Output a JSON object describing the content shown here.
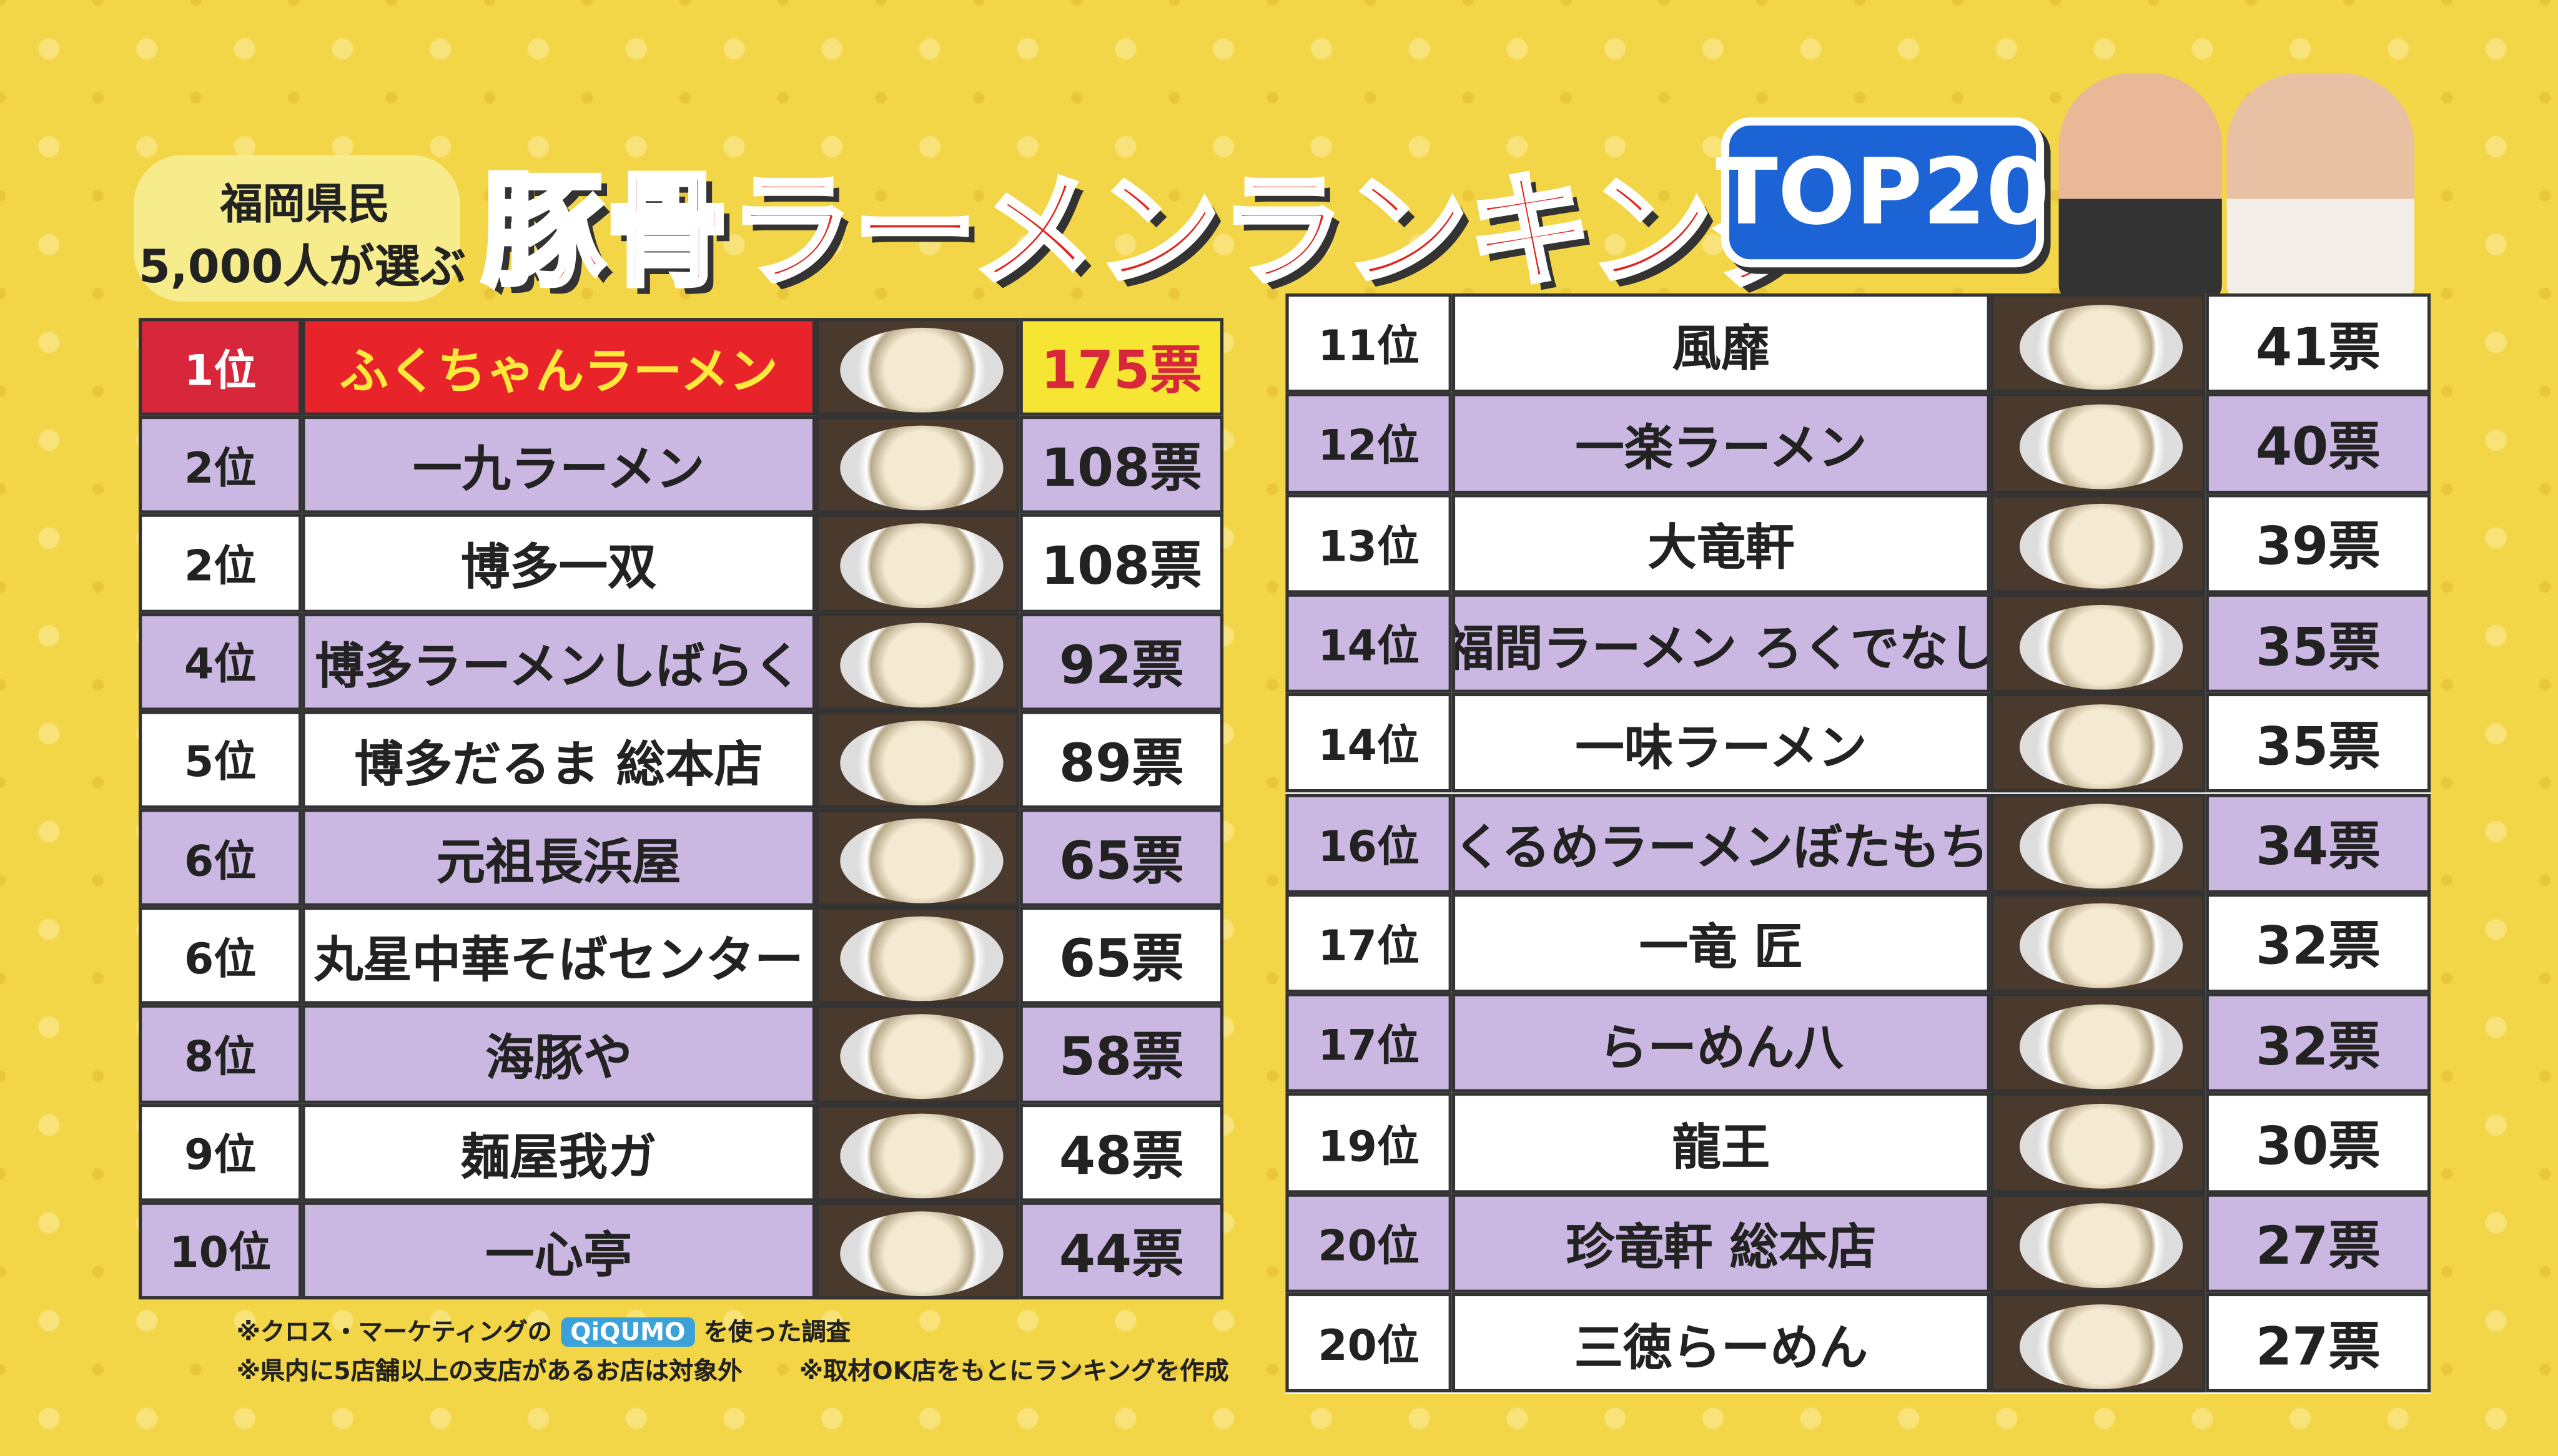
{
  "header": {
    "badge_line1": "福岡県民",
    "badge_line2": "5,000人が選ぶ",
    "title": "豚骨ラーメンランキング",
    "top_badge": "TOP20"
  },
  "left_table": {
    "rows": [
      {
        "rank": "1位",
        "name": "ふくちゃんラーメン",
        "votes": "175票"
      },
      {
        "rank": "2位",
        "name": "一九ラーメン",
        "votes": "108票"
      },
      {
        "rank": "2位",
        "name": "博多一双",
        "votes": "108票"
      },
      {
        "rank": "4位",
        "name": "博多ラーメンしばらく",
        "votes": "92票"
      },
      {
        "rank": "5位",
        "name": "博多だるま 総本店",
        "votes": "89票"
      },
      {
        "rank": "6位",
        "name": "元祖長浜屋",
        "votes": "65票"
      },
      {
        "rank": "6位",
        "name": "丸星中華そばセンター",
        "votes": "65票"
      },
      {
        "rank": "8位",
        "name": "海豚や",
        "votes": "58票"
      },
      {
        "rank": "9位",
        "name": "麺屋我ガ",
        "votes": "48票"
      },
      {
        "rank": "10位",
        "name": "一心亭",
        "votes": "44票"
      }
    ]
  },
  "right_table": {
    "rows": [
      {
        "rank": "11位",
        "name": "風靡",
        "votes": "41票"
      },
      {
        "rank": "12位",
        "name": "一楽ラーメン",
        "votes": "40票"
      },
      {
        "rank": "13位",
        "name": "大竜軒",
        "votes": "39票"
      },
      {
        "rank": "14位",
        "name": "福間ラーメン ろくでなし",
        "votes": "35票"
      },
      {
        "rank": "14位",
        "name": "一味ラーメン",
        "votes": "35票"
      },
      {
        "rank": "16位",
        "name": "くるめラーメンぼたもち",
        "votes": "34票"
      },
      {
        "rank": "17位",
        "name": "一竜 匠",
        "votes": "32票"
      },
      {
        "rank": "17位",
        "name": "らーめん八",
        "votes": "32票"
      },
      {
        "rank": "19位",
        "name": "龍王",
        "votes": "30票"
      },
      {
        "rank": "20位",
        "name": "珍竜軒 総本店",
        "votes": "27票"
      },
      {
        "rank": "20位",
        "name": "三徳らーめん",
        "votes": "27票"
      }
    ]
  },
  "footnotes": {
    "line1_before": "※クロス・マーケティングの",
    "logo": "QiQUMO",
    "line1_after": "を使った調査",
    "line2": "※県内に5店舗以上の支店があるお店は対象外",
    "line3": "※取材OK店をもとにランキングを作成"
  }
}
